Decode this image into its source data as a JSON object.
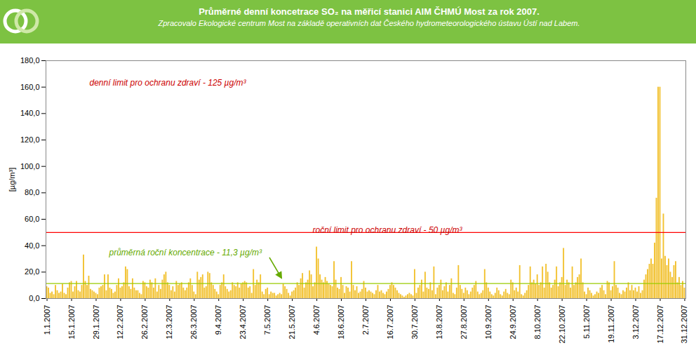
{
  "chart_data": {
    "type": "bar",
    "title": "Průměrné denní koncetrace SO₂ na měřicí stanici AIM ČHMÚ Most za rok 2007.",
    "subtitle": "Zpracovalo Ekologické centrum Most na základě operativních dat Českého hydrometeorologického ústavu Ústí nad Labem.",
    "y_label": "[µg/m³]",
    "color": "#f2c12e",
    "ylim": [
      0,
      180
    ],
    "yticks": [
      {
        "value": 0,
        "label": "0,0"
      },
      {
        "value": 20,
        "label": "20,0"
      },
      {
        "value": 40,
        "label": "40,0"
      },
      {
        "value": 60,
        "label": "60,0"
      },
      {
        "value": 80,
        "label": "80,0"
      },
      {
        "value": 100,
        "label": "100,0"
      },
      {
        "value": 120,
        "label": "120,0"
      },
      {
        "value": 140,
        "label": "140,0"
      },
      {
        "value": 160,
        "label": "160,0"
      },
      {
        "value": 180,
        "label": "180,0"
      }
    ],
    "grid": false,
    "annotations": [
      "denní limit pro ochranu zdraví - 125 µg/m³"
    ],
    "reference_lines": [
      {
        "value": 50,
        "label": "roční limit pro ochranu zdraví - 50 µg/m³",
        "color": "#ff0000"
      },
      {
        "value": 11.3,
        "label": "průměrná roční koncentrace - 11,3 µg/m³",
        "color": "#99cc00"
      }
    ],
    "categories": [
      "1.1.2007",
      null,
      null,
      null,
      null,
      null,
      null,
      null,
      null,
      null,
      null,
      null,
      null,
      null,
      "15.1.2007",
      null,
      null,
      null,
      null,
      null,
      null,
      null,
      null,
      null,
      null,
      null,
      null,
      null,
      "29.1.2007",
      null,
      null,
      null,
      null,
      null,
      null,
      null,
      null,
      null,
      null,
      null,
      null,
      null,
      "12.2.2007",
      null,
      null,
      null,
      null,
      null,
      null,
      null,
      null,
      null,
      null,
      null,
      null,
      null,
      "26.2.2007",
      null,
      null,
      null,
      null,
      null,
      null,
      null,
      null,
      null,
      null,
      null,
      null,
      null,
      "12.3.2007",
      null,
      null,
      null,
      null,
      null,
      null,
      null,
      null,
      null,
      null,
      null,
      null,
      null,
      "26.3.2007",
      null,
      null,
      null,
      null,
      null,
      null,
      null,
      null,
      null,
      null,
      null,
      null,
      null,
      "9.4.2007",
      null,
      null,
      null,
      null,
      null,
      null,
      null,
      null,
      null,
      null,
      null,
      null,
      null,
      "23.4.2007",
      null,
      null,
      null,
      null,
      null,
      null,
      null,
      null,
      null,
      null,
      null,
      null,
      null,
      "7.5.2007",
      null,
      null,
      null,
      null,
      null,
      null,
      null,
      null,
      null,
      null,
      null,
      null,
      null,
      "21.5.2007",
      null,
      null,
      null,
      null,
      null,
      null,
      null,
      null,
      null,
      null,
      null,
      null,
      null,
      "4.6.2007",
      null,
      null,
      null,
      null,
      null,
      null,
      null,
      null,
      null,
      null,
      null,
      null,
      null,
      "18.6.2007",
      null,
      null,
      null,
      null,
      null,
      null,
      null,
      null,
      null,
      null,
      null,
      null,
      null,
      "2.7.2007",
      null,
      null,
      null,
      null,
      null,
      null,
      null,
      null,
      null,
      null,
      null,
      null,
      null,
      "16.7.2007",
      null,
      null,
      null,
      null,
      null,
      null,
      null,
      null,
      null,
      null,
      null,
      null,
      null,
      "30.7.2007",
      null,
      null,
      null,
      null,
      null,
      null,
      null,
      null,
      null,
      null,
      null,
      null,
      null,
      "13.8.2007",
      null,
      null,
      null,
      null,
      null,
      null,
      null,
      null,
      null,
      null,
      null,
      null,
      null,
      "27.8.2007",
      null,
      null,
      null,
      null,
      null,
      null,
      null,
      null,
      null,
      null,
      null,
      null,
      null,
      "10.9.2007",
      null,
      null,
      null,
      null,
      null,
      null,
      null,
      null,
      null,
      null,
      null,
      null,
      null,
      "24.9.2007",
      null,
      null,
      null,
      null,
      null,
      null,
      null,
      null,
      null,
      null,
      null,
      null,
      null,
      "8.10.2007",
      null,
      null,
      null,
      null,
      null,
      null,
      null,
      null,
      null,
      null,
      null,
      null,
      null,
      "22.10.2007",
      null,
      null,
      null,
      null,
      null,
      null,
      null,
      null,
      null,
      null,
      null,
      null,
      null,
      "5.11.2007",
      null,
      null,
      null,
      null,
      null,
      null,
      null,
      null,
      null,
      null,
      null,
      null,
      null,
      "19.11.2007",
      null,
      null,
      null,
      null,
      null,
      null,
      null,
      null,
      null,
      null,
      null,
      null,
      null,
      "3.12.2007",
      null,
      null,
      null,
      null,
      null,
      null,
      null,
      null,
      null,
      null,
      null,
      null,
      null,
      "17.12.2007",
      null,
      null,
      null,
      null,
      null,
      null,
      null,
      null,
      null,
      null,
      null,
      null,
      null,
      "31.12.2007"
    ],
    "values": [
      9,
      8,
      4,
      5,
      3,
      10,
      6,
      4,
      5,
      11,
      4,
      3,
      8,
      12,
      13,
      5,
      9,
      13,
      6,
      5,
      10,
      33,
      13,
      10,
      17,
      7,
      6,
      5,
      4,
      3,
      8,
      9,
      10,
      18,
      6,
      18,
      8,
      7,
      4,
      5,
      10,
      15,
      8,
      9,
      12,
      24,
      22,
      9,
      7,
      15,
      8,
      6,
      6,
      4,
      3,
      13,
      12,
      9,
      8,
      14,
      12,
      8,
      15,
      5,
      10,
      7,
      14,
      18,
      20,
      12,
      10,
      6,
      9,
      5,
      13,
      10,
      11,
      12,
      8,
      6,
      8,
      12,
      15,
      10,
      5,
      3,
      20,
      14,
      16,
      18,
      8,
      9,
      20,
      19,
      12,
      10,
      7,
      5,
      3,
      10,
      12,
      18,
      9,
      7,
      5,
      6,
      12,
      10,
      9,
      12,
      8,
      11,
      12,
      13,
      12,
      8,
      9,
      4,
      22,
      10,
      14,
      12,
      18,
      5,
      3,
      7,
      8,
      3,
      5,
      4,
      4,
      2,
      3,
      4,
      3,
      11,
      9,
      7,
      4,
      2,
      5,
      6,
      8,
      12,
      10,
      15,
      19,
      8,
      12,
      14,
      21,
      18,
      9,
      12,
      39,
      30,
      18,
      14,
      12,
      16,
      13,
      11,
      10,
      9,
      28,
      14,
      8,
      7,
      16,
      10,
      4,
      9,
      8,
      5,
      28,
      10,
      6,
      9,
      4,
      5,
      7,
      13,
      8,
      5,
      6,
      5,
      4,
      3,
      6,
      10,
      5,
      6,
      4,
      3,
      5,
      7,
      10,
      12,
      10,
      8,
      6,
      4,
      3,
      2,
      1,
      2,
      3,
      4,
      3,
      2,
      22,
      4,
      8,
      10,
      14,
      5,
      20,
      8,
      7,
      12,
      6,
      24,
      3,
      8,
      10,
      14,
      6,
      9,
      12,
      5,
      10,
      15,
      4,
      3,
      8,
      25,
      10,
      7,
      4,
      8,
      6,
      3,
      5,
      8,
      10,
      13,
      5,
      3,
      4,
      6,
      22,
      12,
      8,
      5,
      3,
      2,
      4,
      8,
      6,
      3,
      2,
      5,
      7,
      4,
      3,
      14,
      12,
      6,
      8,
      5,
      25,
      3,
      2,
      4,
      6,
      10,
      24,
      12,
      14,
      11,
      18,
      10,
      12,
      24,
      8,
      26,
      20,
      12,
      8,
      10,
      14,
      24,
      9,
      12,
      16,
      38,
      10,
      14,
      12,
      8,
      24,
      10,
      12,
      16,
      18,
      30,
      12,
      5,
      3,
      8,
      6,
      4,
      2,
      3,
      5,
      4,
      8,
      10,
      6,
      3,
      13,
      12,
      6,
      9,
      28,
      10,
      8,
      4,
      3,
      6,
      5,
      8,
      12,
      6,
      10,
      6,
      8,
      5,
      9,
      4,
      6,
      14,
      18,
      22,
      26,
      30,
      26,
      42,
      76,
      160,
      160,
      30,
      64,
      32,
      25,
      30,
      20,
      16,
      25,
      28,
      12,
      16,
      10,
      13,
      8
    ]
  }
}
